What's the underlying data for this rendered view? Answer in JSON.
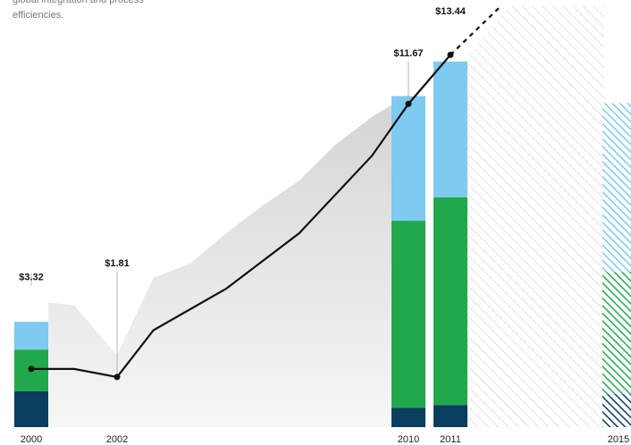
{
  "intro": {
    "lines": [
      "global integration and process",
      "efficiencies."
    ]
  },
  "colors": {
    "dark_blue": "#0a3e5e",
    "green": "#21a84a",
    "light_blue": "#7ecaf0",
    "gray_area": "#d9d9d9",
    "line": "#111111",
    "hatch": "#c8c8c8"
  },
  "chart_data": {
    "type": "bar",
    "title": "",
    "xlabel": "",
    "ylabel": "",
    "ylim": [
      0,
      15
    ],
    "grid": false,
    "x_ticks": [
      "2000",
      "2002",
      "2010",
      "2011",
      "2015"
    ],
    "bars": [
      {
        "x": "2000",
        "segments": [
          1.3,
          1.5,
          1.0
        ]
      },
      {
        "x": "2010",
        "segments": [
          0.7,
          6.75,
          4.5
        ]
      },
      {
        "x": "2011",
        "segments": [
          0.8,
          7.5,
          4.9
        ]
      },
      {
        "x": "2015",
        "segments": [
          1.2,
          4.4,
          6.1
        ],
        "hatched": true
      }
    ],
    "line": {
      "points": [
        {
          "x": 2000.0,
          "y": 2.1
        },
        {
          "x": 2001.0,
          "y": 2.1
        },
        {
          "x": 2002.0,
          "y": 1.81,
          "label": "$1.81"
        },
        {
          "x": 2003.0,
          "y": 3.5
        },
        {
          "x": 2005.0,
          "y": 5.0
        },
        {
          "x": 2007.0,
          "y": 7.0
        },
        {
          "x": 2009.0,
          "y": 9.8
        },
        {
          "x": 2010.0,
          "y": 11.67,
          "label": "$11.67"
        },
        {
          "x": 2011.0,
          "y": 13.44,
          "label": "$13.44"
        }
      ],
      "projection": [
        {
          "x": 2011.0,
          "y": 13.44
        },
        {
          "x": 2012.2,
          "y": 15.2
        }
      ]
    },
    "range_band": {
      "upper": [
        {
          "x": 2000.0,
          "y": 4.5
        },
        {
          "x": 2001.0,
          "y": 4.4
        },
        {
          "x": 2002.0,
          "y": 2.6
        },
        {
          "x": 2003.0,
          "y": 5.4
        },
        {
          "x": 2004.0,
          "y": 5.9
        },
        {
          "x": 2005.0,
          "y": 7.0
        },
        {
          "x": 2006.0,
          "y": 8.0
        },
        {
          "x": 2007.0,
          "y": 8.9
        },
        {
          "x": 2008.0,
          "y": 10.2
        },
        {
          "x": 2009.0,
          "y": 11.2
        },
        {
          "x": 2010.0,
          "y": 12.0
        }
      ]
    },
    "annotations": [
      {
        "x": 2000.0,
        "y": 5.3,
        "label": "$3.32"
      }
    ],
    "projection_region_from": 2011.0
  }
}
